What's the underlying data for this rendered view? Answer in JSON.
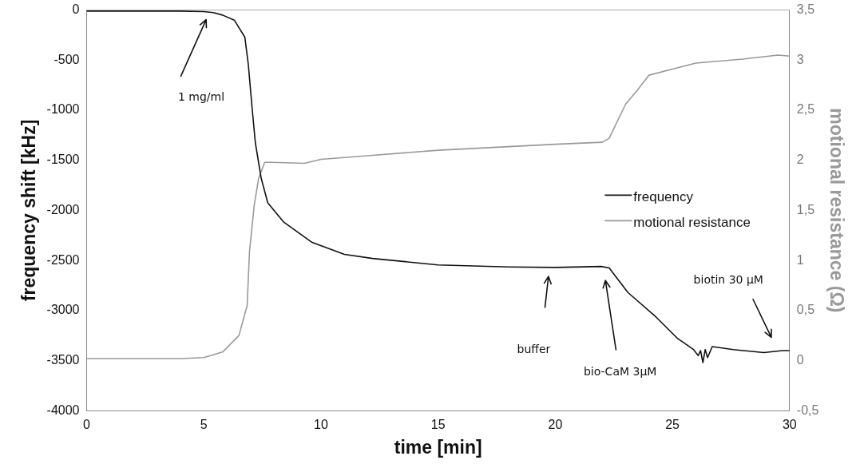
{
  "chart_data": {
    "type": "line",
    "xlabel": "time [min]",
    "ylabel": "frequency shift [kHz]",
    "y2label": "motional resistance (Ω)",
    "xlim": [
      0,
      30
    ],
    "xticks": [
      0,
      5,
      10,
      15,
      20,
      25,
      30
    ],
    "ylim": [
      -4000,
      0
    ],
    "yticks": [
      -4000,
      -3500,
      -3000,
      -2500,
      -2000,
      -1500,
      -1000,
      -500,
      0
    ],
    "y2lim": [
      -0.5,
      3.5
    ],
    "y2ticks": [
      {
        "value": -0.5,
        "label": "-0,5"
      },
      0,
      {
        "value": 0.5,
        "label": "0,5"
      },
      1,
      {
        "value": 1.5,
        "label": "1,5"
      },
      2,
      {
        "value": 2.5,
        "label": "2,5"
      },
      3,
      {
        "value": 3.5,
        "label": "3,5"
      }
    ],
    "grid": false,
    "legend": "right",
    "marker": "none",
    "line_style": "solid",
    "series": [
      {
        "name": "frequency",
        "color": "#111111",
        "x": [
          0,
          2,
          4,
          5,
          5.4,
          5.8,
          6.3,
          6.75,
          6.9,
          7.06,
          7.2,
          7.45,
          7.73,
          8.4,
          9.6,
          11,
          12.2,
          15,
          18,
          20,
          21.96,
          22.3,
          23.1,
          24.3,
          25.2,
          25.9,
          26.1,
          26.2,
          26.3,
          26.4,
          26.5,
          26.7,
          27.6,
          28.9,
          29.7,
          30
        ],
        "values": [
          -10,
          -10,
          -10,
          -15,
          -25,
          -50,
          -100,
          -270,
          -545,
          -975,
          -1325,
          -1680,
          -1925,
          -2115,
          -2317,
          -2440,
          -2480,
          -2545,
          -2565,
          -2570,
          -2560,
          -2575,
          -2820,
          -3065,
          -3275,
          -3390,
          -3450,
          -3400,
          -3520,
          -3390,
          -3470,
          -3360,
          -3390,
          -3420,
          -3400,
          -3400
        ]
      },
      {
        "name": "motional resistance",
        "color": "#999999",
        "axis": "y2",
        "x": [
          0,
          2,
          4,
          5,
          5.8,
          6.5,
          6.85,
          6.95,
          7.15,
          7.34,
          7.6,
          7.9,
          9.3,
          10,
          12.2,
          15,
          20,
          22,
          22.3,
          23,
          23.5,
          24,
          25,
          26,
          28,
          29.5,
          30
        ],
        "values": [
          0.02,
          0.02,
          0.02,
          0.03,
          0.085,
          0.25,
          0.55,
          1.09,
          1.55,
          1.82,
          1.98,
          1.98,
          1.97,
          2.01,
          2.05,
          2.1,
          2.16,
          2.18,
          2.22,
          2.56,
          2.7,
          2.85,
          2.91,
          2.97,
          3.01,
          3.05,
          3.04
        ]
      }
    ],
    "annotations": [
      "1 mg/ml",
      "buffer",
      "bio-CaM 3µM",
      "biotin 30 µM"
    ]
  }
}
